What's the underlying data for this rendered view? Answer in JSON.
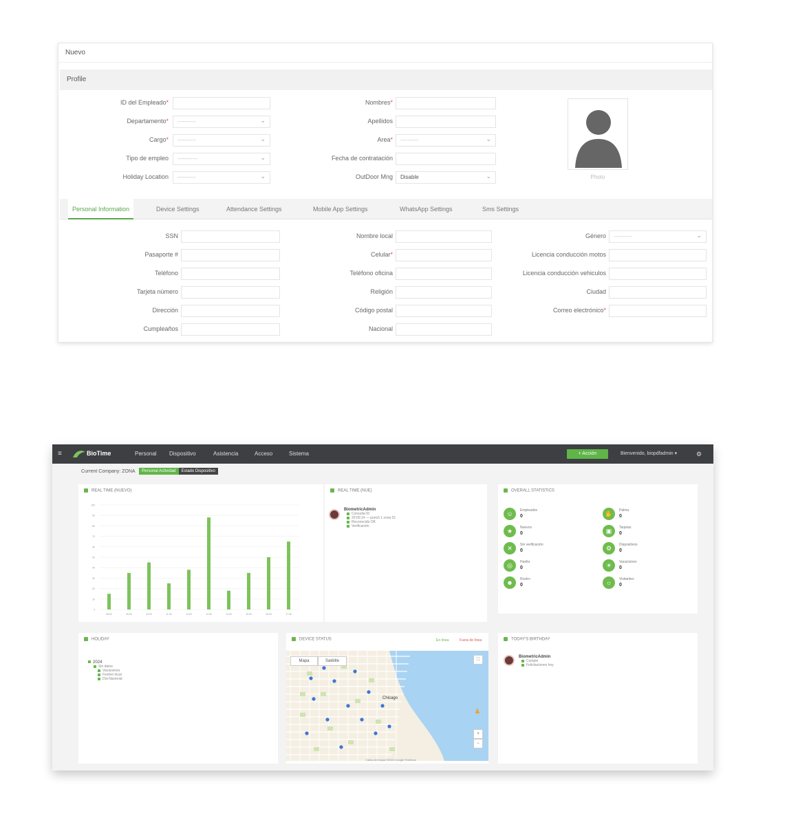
{
  "form": {
    "header": "Nuevo",
    "section": "Profile",
    "left_fields": [
      {
        "label": "ID del Empleado",
        "required": true,
        "type": "input",
        "value": ""
      },
      {
        "label": "Departamento",
        "required": true,
        "type": "select",
        "value": "----------"
      },
      {
        "label": "Cargo",
        "required": true,
        "type": "select",
        "value": "----------"
      },
      {
        "label": "Tipo de empleo",
        "required": false,
        "type": "select",
        "value": "-----------"
      },
      {
        "label": "Holiday Location",
        "required": false,
        "type": "select",
        "value": "----------"
      }
    ],
    "middle_fields": [
      {
        "label": "Nombres",
        "required": true,
        "type": "input",
        "value": ""
      },
      {
        "label": "Apellidos",
        "required": false,
        "type": "input",
        "value": ""
      },
      {
        "label": "Area",
        "required": true,
        "type": "select",
        "value": "----------"
      },
      {
        "label": "Fecha de contratación",
        "required": false,
        "type": "input",
        "value": ""
      },
      {
        "label": "OutDoor Mng",
        "required": false,
        "type": "select",
        "value": "Disable"
      }
    ],
    "photo_label": "Photo",
    "tabs": [
      "Personal Information",
      "Device Settings",
      "Attendance Settings",
      "Mobile App Settings",
      "WhatsApp Settings",
      "Sms Settings"
    ],
    "personal_col1": [
      {
        "label": "SSN",
        "required": false
      },
      {
        "label": "Pasaporte #",
        "required": false
      },
      {
        "label": "Teléfono",
        "required": false
      },
      {
        "label": "Tarjeta número",
        "required": false
      },
      {
        "label": "Dirección",
        "required": false
      },
      {
        "label": "Cumpleaños",
        "required": false
      }
    ],
    "personal_col2": [
      {
        "label": "Nombre local",
        "required": false
      },
      {
        "label": "Celular",
        "required": true
      },
      {
        "label": "Teléfono oficina",
        "required": false
      },
      {
        "label": "Religión",
        "required": false
      },
      {
        "label": "Código postal",
        "required": false
      },
      {
        "label": "Nacional",
        "required": false
      }
    ],
    "personal_col3": [
      {
        "label": "Género",
        "required": false,
        "type": "select",
        "value": "----------"
      },
      {
        "label": "Licencia conducción motos",
        "required": false,
        "type": "input",
        "value": ""
      },
      {
        "label": "Licencia conducción vehiculos",
        "required": false,
        "type": "input",
        "value": ""
      },
      {
        "label": "Ciudad",
        "required": false,
        "type": "input",
        "value": ""
      },
      {
        "label": "Correo electrónico",
        "required": true,
        "type": "input",
        "value": ""
      }
    ]
  },
  "dashboard": {
    "logo_text": "BioTime",
    "nav": [
      "Personal",
      "Dispositivo",
      "Asistencia",
      "Acceso",
      "Sistema"
    ],
    "new_button": "+ Acción",
    "user_label": "Bienvenido, biopdfadmin ▾",
    "company_label": "Current Company: ZONA",
    "chips": [
      "Personal Actividad",
      "Estado Dispositivo"
    ],
    "chart_title": "REAL TIME (NUEVO)",
    "realtime_title": "REAL TIME (NUE)",
    "realtime_entries": [
      "BiometricAdmin",
      "Consulta ID",
      "20:00:14 — punch 1 zona 01",
      "Reconocido OK",
      "Verificación"
    ],
    "stats_title": "OVERALL STATISTICS",
    "stats": [
      {
        "label": "Empleados",
        "value": "0",
        "icon": "☺"
      },
      {
        "label": "Nuevos",
        "value": "0",
        "icon": "★"
      },
      {
        "label": "Sin verificación",
        "value": "0",
        "icon": "✕"
      },
      {
        "label": "Huella",
        "value": "0",
        "icon": "◎"
      },
      {
        "label": "Rostro",
        "value": "0",
        "icon": "☻"
      },
      {
        "label": "Palma",
        "value": "0",
        "icon": "✋"
      },
      {
        "label": "Tarjetas",
        "value": "0",
        "icon": "▣"
      },
      {
        "label": "Dispositivos",
        "value": "0",
        "icon": "⚙"
      },
      {
        "label": "Vacaciones",
        "value": "0",
        "icon": "☀"
      },
      {
        "label": "Visitantes",
        "value": "0",
        "icon": "☼"
      }
    ],
    "holidays_title": "HOLIDAY",
    "holiday_items": [
      "2024",
      "Sin datos",
      "Vacaciones",
      "Festivo local",
      "Día Nacional"
    ],
    "map_title": "DEVICE STATUS",
    "map_status": [
      "En línea",
      "Fuera de línea"
    ],
    "map_tabs": [
      "Mapa",
      "Satélite"
    ],
    "map_city": "Chicago",
    "map_attrib": "Datos del mapa ©2024 Google  Términos",
    "birthday_title": "TODAY'S BIRTHDAY",
    "birthday_entries": [
      "BiometricAdmin",
      "Cumple",
      "Felicitaciones hoy"
    ]
  },
  "chart_data": {
    "type": "bar",
    "categories": [
      "08:00",
      "09:00",
      "10:00",
      "11:00",
      "12:00",
      "13:00",
      "14:00",
      "15:00",
      "16:00",
      "17:00"
    ],
    "values": [
      15,
      35,
      45,
      25,
      38,
      88,
      18,
      35,
      50,
      65
    ],
    "ylim": [
      0,
      100
    ],
    "yticks": [
      0,
      10,
      20,
      30,
      40,
      50,
      60,
      70,
      80,
      90,
      100
    ],
    "color": "#7dc35b",
    "grid": true
  }
}
